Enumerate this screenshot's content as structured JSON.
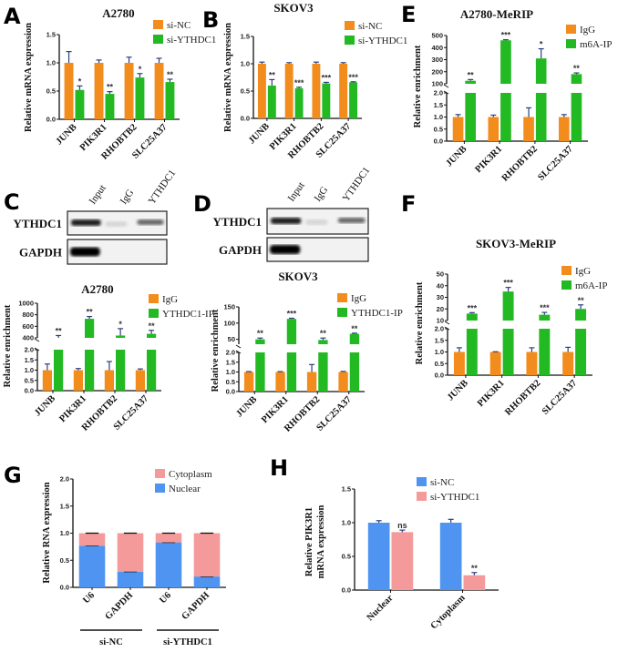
{
  "colors": {
    "orange": "#F28C1C",
    "green": "#22B922",
    "pink": "#F59A9A",
    "blue": "#4F94F0"
  },
  "panel_labels": [
    "A",
    "B",
    "C",
    "D",
    "E",
    "F",
    "G",
    "H"
  ],
  "blots": [
    {
      "panel": "C",
      "lanes": [
        "Input",
        "IgG",
        "YTHDC1"
      ],
      "rows": [
        "YTHDC1",
        "GAPDH"
      ]
    },
    {
      "panel": "D",
      "lanes": [
        "Input",
        "IgG",
        "YTHDC1"
      ],
      "rows": [
        "YTHDC1",
        "GAPDH"
      ]
    }
  ],
  "chart_data": [
    {
      "panel": "A",
      "type": "bar",
      "title": "A2780",
      "ylabel": "Relative mRNA expression",
      "categories": [
        "JUNB",
        "PIK3R1",
        "RHOBTB2",
        "SLC25A37"
      ],
      "ylim": [
        0,
        1.5
      ],
      "yticks": [
        "0.0",
        "0.5",
        "1.0",
        "1.5"
      ],
      "series": [
        {
          "name": "si-NC",
          "color": "#F28C1C",
          "values": [
            1,
            1,
            1,
            1
          ],
          "errors": [
            0.2,
            0.05,
            0.1,
            0.08
          ]
        },
        {
          "name": "si-YTHDC1",
          "color": "#22B922",
          "values": [
            0.52,
            0.45,
            0.74,
            0.66
          ],
          "errors": [
            0.07,
            0.04,
            0.07,
            0.05
          ],
          "significance": [
            "*",
            "**",
            "*",
            "**"
          ]
        }
      ]
    },
    {
      "panel": "B",
      "type": "bar",
      "title": "SKOV3",
      "ylabel": "Relative mRNA expression",
      "categories": [
        "JUNB",
        "PIK3R1",
        "RHOBTB2",
        "SLC25A37"
      ],
      "ylim": [
        0,
        1.5
      ],
      "yticks": [
        "0.0",
        "0.5",
        "1.0",
        "1.5"
      ],
      "series": [
        {
          "name": "si-NC",
          "color": "#F28C1C",
          "values": [
            1,
            1,
            1,
            1
          ],
          "errors": [
            0.03,
            0.02,
            0.03,
            0.02
          ]
        },
        {
          "name": "si-YTHDC1",
          "color": "#22B922",
          "values": [
            0.6,
            0.55,
            0.64,
            0.66
          ],
          "errors": [
            0.11,
            0.02,
            0.02,
            0.01
          ],
          "significance": [
            "**",
            "***",
            "***",
            "***"
          ]
        }
      ]
    },
    {
      "panel": "C",
      "type": "bar",
      "title": "A2780",
      "ylabel": "Relative enrichment",
      "categories": [
        "JUNB",
        "PIK3R1",
        "RHOBTB2",
        "SLC25A37"
      ],
      "ylim_lower": [
        0,
        2
      ],
      "ylim_upper": [
        400,
        1000
      ],
      "yticks_lower": [
        "0.0",
        "0.5",
        "1.0",
        "1.5",
        "2.0"
      ],
      "yticks_upper": [
        "400",
        "600",
        "800",
        "1000"
      ],
      "series": [
        {
          "name": "IgG",
          "color": "#F28C1C",
          "values": [
            1,
            1,
            1,
            1
          ],
          "errors": [
            0.3,
            0.08,
            0.42,
            0.06
          ]
        },
        {
          "name": "YTHDC1-IP",
          "color": "#22B922",
          "values": [
            400,
            730,
            440,
            470
          ],
          "errors": [
            40,
            40,
            120,
            60
          ],
          "significance": [
            "**",
            "**",
            "*",
            "**"
          ]
        }
      ]
    },
    {
      "panel": "D",
      "type": "bar",
      "title": "SKOV3",
      "ylabel": "Relative enrichment",
      "categories": [
        "JUNB",
        "PIK3R1",
        "RHOBTB2",
        "SLC25A37"
      ],
      "ylim_lower": [
        0,
        2
      ],
      "ylim_upper": [
        35,
        150
      ],
      "yticks_lower": [
        "0.0",
        "0.5",
        "1.0",
        "1.5",
        "2.0"
      ],
      "yticks_upper": [
        "50",
        "100",
        "150"
      ],
      "series": [
        {
          "name": "IgG",
          "color": "#F28C1C",
          "values": [
            1,
            1,
            1,
            1
          ],
          "errors": [
            0.02,
            0.02,
            0.38,
            0.03
          ]
        },
        {
          "name": "YTHDC1-IP",
          "color": "#22B922",
          "values": [
            50,
            113,
            48,
            67
          ],
          "errors": [
            4,
            2,
            6,
            2
          ],
          "significance": [
            "**",
            "***",
            "**",
            "**"
          ]
        }
      ]
    },
    {
      "panel": "E",
      "type": "bar",
      "title": "A2780-MeRIP",
      "ylabel": "Relative enrichment",
      "categories": [
        "JUNB",
        "PIK3R1",
        "RHOBTB2",
        "SLC25A37"
      ],
      "ylim_lower": [
        0,
        2
      ],
      "ylim_upper": [
        100,
        500
      ],
      "yticks_lower": [
        "0.0",
        "0.5",
        "1.0",
        "1.5",
        "2.0"
      ],
      "yticks_upper": [
        "100",
        "200",
        "300",
        "400",
        "500"
      ],
      "series": [
        {
          "name": "IgG",
          "color": "#F28C1C",
          "values": [
            1,
            1,
            1,
            1
          ],
          "errors": [
            0.1,
            0.08,
            0.38,
            0.1
          ]
        },
        {
          "name": "m6A-IP",
          "color": "#22B922",
          "values": [
            125,
            460,
            310,
            180
          ],
          "errors": [
            10,
            5,
            80,
            10
          ],
          "significance": [
            "**",
            "***",
            "*",
            "**"
          ]
        }
      ]
    },
    {
      "panel": "F",
      "type": "bar",
      "title": "SKOV3-MeRIP",
      "ylabel": "Relative enrichment",
      "categories": [
        "JUNB",
        "PIK3R1",
        "RHOBTB2",
        "SLC25A37"
      ],
      "ylim_lower": [
        0,
        2
      ],
      "ylim_upper": [
        10,
        50
      ],
      "yticks_lower": [
        "0.0",
        "0.5",
        "1.0",
        "1.5",
        "2.0"
      ],
      "yticks_upper": [
        "10",
        "20",
        "30",
        "40",
        "50"
      ],
      "series": [
        {
          "name": "IgG",
          "color": "#F28C1C",
          "values": [
            1,
            1,
            1,
            1
          ],
          "errors": [
            0.18,
            0.01,
            0.18,
            0.2
          ]
        },
        {
          "name": "m6A-IP",
          "color": "#22B922",
          "values": [
            16,
            35,
            15,
            20
          ],
          "errors": [
            0.8,
            3.5,
            2,
            3.5
          ],
          "significance": [
            "***",
            "***",
            "***",
            "**"
          ]
        }
      ]
    },
    {
      "panel": "G",
      "type": "stacked-bar",
      "ylabel": "Relative RNA expression",
      "categories": [
        "U6",
        "GAPDH",
        "U6",
        "GAPDH"
      ],
      "groups": [
        "si-NC",
        "si-YTHDC1"
      ],
      "ylim": [
        0,
        2
      ],
      "yticks": [
        "0.0",
        "0.5",
        "1.0",
        "1.5",
        "2.0"
      ],
      "series": [
        {
          "name": "Nuclear",
          "color": "#4F94F0",
          "values": [
            0.77,
            0.29,
            0.83,
            0.2
          ]
        },
        {
          "name": "Cytoplasm",
          "color": "#F59A9A",
          "values": [
            0.23,
            0.71,
            0.17,
            0.8
          ]
        }
      ]
    },
    {
      "panel": "H",
      "type": "bar",
      "ylabel": [
        "Relative PIK3R1",
        "mRNA expression"
      ],
      "categories": [
        "Nuclear",
        "Cytoplasm"
      ],
      "ylim": [
        0,
        1.5
      ],
      "yticks": [
        "0.0",
        "0.5",
        "1.0",
        "1.5"
      ],
      "series": [
        {
          "name": "si-NC",
          "color": "#4F94F0",
          "values": [
            1,
            1
          ],
          "errors": [
            0.03,
            0.05
          ]
        },
        {
          "name": "si-YTHDC1",
          "color": "#F59A9A",
          "values": [
            0.86,
            0.22
          ],
          "errors": [
            0.03,
            0.04
          ],
          "significance": [
            "ns",
            "**"
          ]
        }
      ]
    }
  ]
}
